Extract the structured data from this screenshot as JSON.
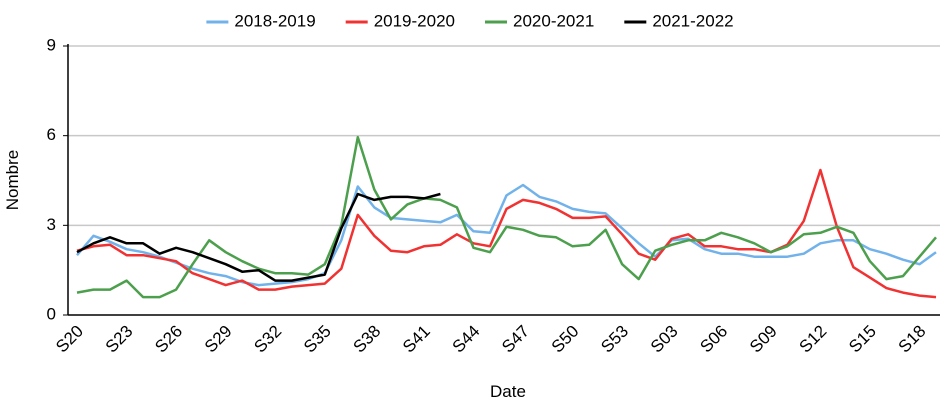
{
  "chart_data": {
    "type": "line",
    "x_label": "Date",
    "y_label": "Nombre",
    "categories": [
      "S20",
      null,
      null,
      "S23",
      null,
      null,
      "S26",
      null,
      null,
      "S29",
      null,
      null,
      "S32",
      null,
      null,
      "S35",
      null,
      null,
      "S38",
      null,
      null,
      "S41",
      null,
      null,
      "S44",
      null,
      null,
      "S47",
      null,
      null,
      "S50",
      null,
      null,
      "S53",
      null,
      null,
      "S03",
      null,
      null,
      "S06",
      null,
      null,
      "S09",
      null,
      null,
      "S12",
      null,
      null,
      "S15",
      null,
      null,
      "S18",
      null
    ],
    "series": [
      {
        "name": "2018-2019",
        "color": "#72b2ea",
        "values": [
          2.0,
          2.65,
          2.45,
          2.2,
          2.1,
          1.95,
          1.75,
          1.55,
          1.4,
          1.3,
          1.1,
          1.0,
          1.05,
          1.1,
          1.2,
          1.4,
          2.5,
          4.3,
          3.6,
          3.25,
          3.2,
          3.15,
          3.1,
          3.35,
          2.8,
          2.75,
          4.0,
          4.35,
          3.95,
          3.8,
          3.55,
          3.45,
          3.4,
          2.9,
          2.4,
          1.95,
          2.5,
          2.55,
          2.2,
          2.05,
          2.05,
          1.95,
          1.95,
          1.95,
          2.05,
          2.4,
          2.5,
          2.5,
          2.2,
          2.05,
          1.85,
          1.7,
          2.1
        ]
      },
      {
        "name": "2019-2020",
        "color": "#f03232",
        "values": [
          2.15,
          2.3,
          2.35,
          2.0,
          2.0,
          1.9,
          1.8,
          1.4,
          1.2,
          1.0,
          1.15,
          0.85,
          0.85,
          0.95,
          1.0,
          1.05,
          1.55,
          3.35,
          2.65,
          2.15,
          2.1,
          2.3,
          2.35,
          2.7,
          2.4,
          2.3,
          3.55,
          3.85,
          3.75,
          3.55,
          3.25,
          3.25,
          3.3,
          2.7,
          2.05,
          1.85,
          2.55,
          2.7,
          2.3,
          2.3,
          2.2,
          2.2,
          2.1,
          2.35,
          3.15,
          4.85,
          2.95,
          1.6,
          1.25,
          0.9,
          0.75,
          0.65,
          0.6
        ]
      },
      {
        "name": "2020-2021",
        "color": "#4c9f4c",
        "values": [
          0.75,
          0.85,
          0.85,
          1.15,
          0.6,
          0.6,
          0.85,
          1.7,
          2.5,
          2.1,
          1.8,
          1.55,
          1.4,
          1.4,
          1.35,
          1.7,
          3.0,
          5.95,
          4.2,
          3.2,
          3.7,
          3.9,
          3.85,
          3.6,
          2.25,
          2.1,
          2.95,
          2.85,
          2.65,
          2.6,
          2.3,
          2.35,
          2.85,
          1.7,
          1.2,
          2.15,
          2.35,
          2.5,
          2.5,
          2.75,
          2.6,
          2.4,
          2.1,
          2.3,
          2.7,
          2.75,
          2.95,
          2.75,
          1.8,
          1.2,
          1.3,
          1.95,
          2.6
        ]
      },
      {
        "name": "2021-2022",
        "color": "#000000",
        "values": [
          2.1,
          2.4,
          2.6,
          2.4,
          2.4,
          2.05,
          2.25,
          2.1,
          1.9,
          1.7,
          1.45,
          1.5,
          1.15,
          1.15,
          1.25,
          1.35,
          2.9,
          4.05,
          3.85,
          3.95,
          3.95,
          3.9,
          4.05,
          null,
          null,
          null,
          null,
          null,
          null,
          null,
          null,
          null,
          null,
          null,
          null,
          null,
          null,
          null,
          null,
          null,
          null,
          null,
          null,
          null,
          null,
          null,
          null,
          null,
          null,
          null,
          null,
          null,
          null
        ]
      }
    ],
    "ylim": [
      0,
      9
    ],
    "yticks": [
      0,
      3,
      6,
      9
    ],
    "grid": true,
    "legend": "top"
  }
}
